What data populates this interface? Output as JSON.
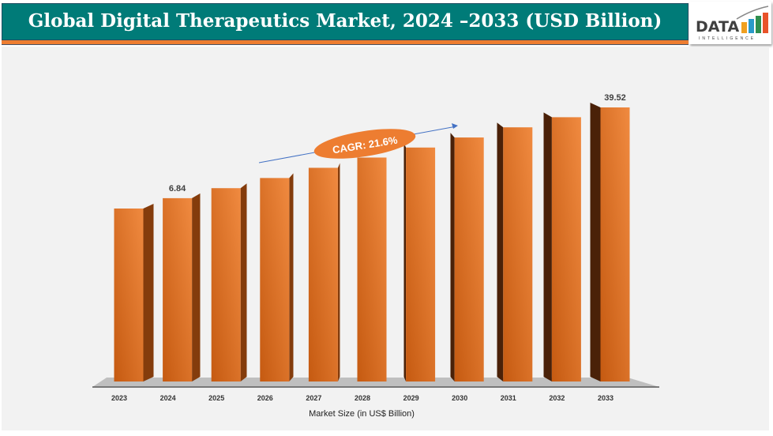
{
  "title": "Global Digital Therapeutics Market, 2024 –2033 (USD Billion)",
  "logo": {
    "text": "DATA",
    "subtext": "INTELLIGENCE"
  },
  "chart_data": {
    "type": "bar",
    "title": "Global Digital Therapeutics Market, 2024 –2033 (USD Billion)",
    "xlabel": "Market Size (in US$ Billion)",
    "ylabel": "",
    "categories": [
      "2023",
      "2024",
      "2025",
      "2026",
      "2027",
      "2028",
      "2029",
      "2030",
      "2031",
      "2032",
      "2033"
    ],
    "values": [
      5.6,
      6.84,
      8.3,
      10.1,
      12.3,
      15.0,
      18.2,
      22.1,
      26.9,
      32.7,
      39.52
    ],
    "data_labels": {
      "1": "6.84",
      "10": "39.52"
    },
    "annotation": "CAGR: 21.6%",
    "grid": false,
    "legend": "none",
    "colors": {
      "bar": "#c55a11",
      "bar_light": "#ed7d31",
      "side": "#843c0c",
      "title_bg": "#007b78",
      "accent": "#ed7d31",
      "arrow": "#4472c4"
    }
  }
}
